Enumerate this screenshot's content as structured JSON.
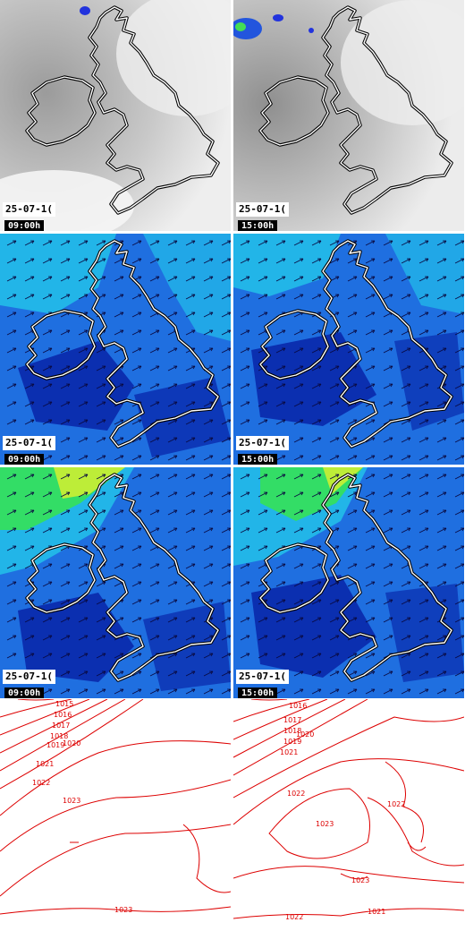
{
  "panels": [
    {
      "id": "cloud-0900",
      "kind": "cloud",
      "date": "25-07-1(",
      "time": "09:00h"
    },
    {
      "id": "cloud-1500",
      "kind": "cloud",
      "date": "25-07-1(",
      "time": "15:00h"
    },
    {
      "id": "wind-a-0900",
      "kind": "wind",
      "date": "25-07-1(",
      "time": "09:00h"
    },
    {
      "id": "wind-a-1500",
      "kind": "wind",
      "date": "25-07-1(",
      "time": "15:00h"
    },
    {
      "id": "wind-b-0900",
      "kind": "wind",
      "date": "25-07-1(",
      "time": "09:00h"
    },
    {
      "id": "wind-b-1500",
      "kind": "wind",
      "date": "25-07-1(",
      "time": "15:00h"
    },
    {
      "id": "pressure-0900",
      "kind": "pressure",
      "date": "",
      "time": ""
    },
    {
      "id": "pressure-1500",
      "kind": "pressure",
      "date": "",
      "time": ""
    }
  ],
  "isobars": {
    "left": [
      "1015",
      "1016",
      "1017",
      "1018",
      "1019",
      "1020",
      "1021",
      "1022",
      "1023",
      "1023"
    ],
    "right": [
      "1016",
      "1017",
      "1018",
      "1019",
      "1020",
      "1021",
      "1022",
      "1023",
      "1022",
      "1023",
      "1021",
      "1022"
    ]
  },
  "colors": {
    "coast": "#ffffff",
    "coast_outline": "#000000",
    "isobar": "#dd0000",
    "wind_deep": "#0b2fb0",
    "wind_mid": "#1f6fe0",
    "wind_light": "#22b5e8",
    "wind_green": "#33dd66",
    "wind_yellow": "#ccee33",
    "cloud_light": "#f2f2f2",
    "cloud_grey": "#a9a9a9"
  }
}
